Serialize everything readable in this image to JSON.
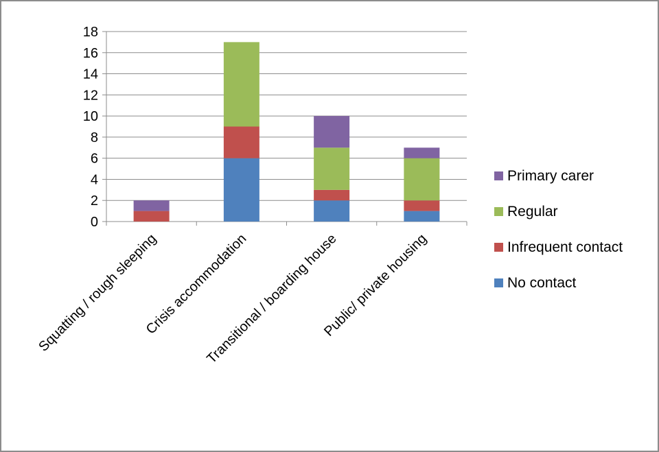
{
  "chart_data": {
    "type": "bar",
    "stacked": true,
    "categories": [
      "Squatting / rough sleeping",
      "Crisis accommodation",
      "Transitional / boarding house",
      "Public/ private housing"
    ],
    "series": [
      {
        "name": "No contact",
        "color": "#4f81bd",
        "values": [
          0,
          6,
          2,
          1
        ]
      },
      {
        "name": "Infrequent contact",
        "color": "#c0504d",
        "values": [
          1,
          3,
          1,
          1
        ]
      },
      {
        "name": "Regular",
        "color": "#9bbb59",
        "values": [
          0,
          8,
          4,
          4
        ]
      },
      {
        "name": "Primary carer",
        "color": "#8064a2",
        "values": [
          1,
          0,
          3,
          1
        ]
      }
    ],
    "ylim": [
      0,
      18
    ],
    "yticks": [
      "0",
      "2",
      "4",
      "6",
      "8",
      "10",
      "12",
      "14",
      "16",
      "18"
    ],
    "grid": true,
    "legend": "right"
  }
}
